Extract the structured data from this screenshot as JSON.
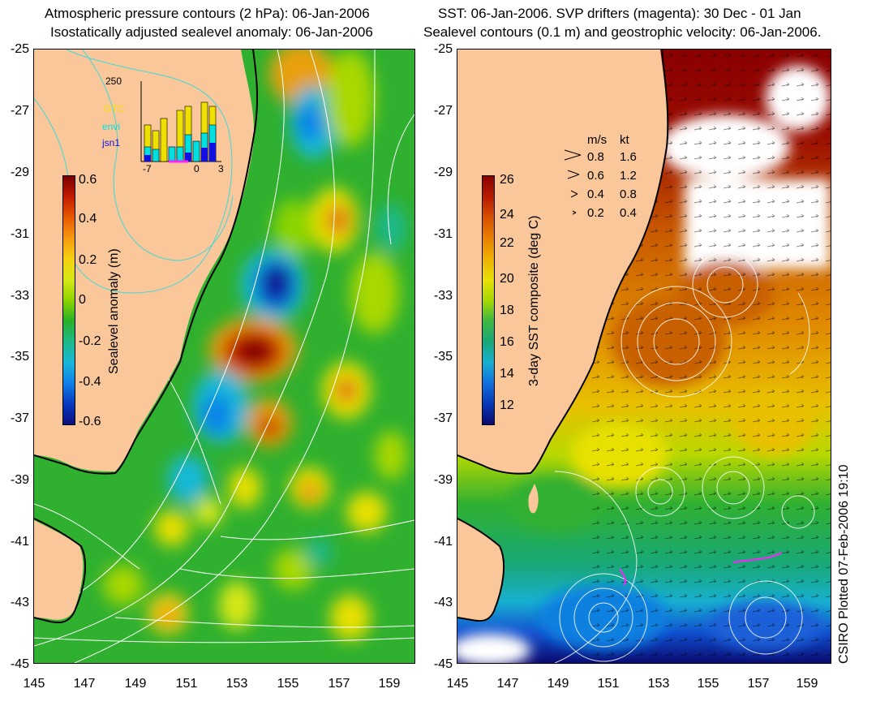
{
  "left_panel": {
    "title_line1": "Atmospheric pressure contours (2 hPa): 06-Jan-2006",
    "title_line2": "Isostatically adjusted sealevel anomaly: 06-Jan-2006",
    "y_ticks": [
      "-25",
      "-27",
      "-29",
      "-31",
      "-33",
      "-35",
      "-37",
      "-39",
      "-41",
      "-43",
      "-45"
    ],
    "x_ticks": [
      "145",
      "147",
      "149",
      "151",
      "153",
      "155",
      "157",
      "159"
    ],
    "colorbar": {
      "label": "Sealevel anomaly (m)",
      "ticks": [
        "0.6",
        "0.4",
        "0.2",
        "0",
        "-0.2",
        "-0.4",
        "-0.6"
      ],
      "colors": [
        "#7a0000",
        "#c41a00",
        "#e65a00",
        "#f59a10",
        "#f5d010",
        "#d8e818",
        "#8cd400",
        "#28b028",
        "#1eb888",
        "#18b8d8",
        "#1080e8",
        "#0838c0",
        "#0a1080"
      ]
    },
    "inset": {
      "top_value": "250",
      "legend": [
        "GTC",
        "envi",
        "jsn1"
      ],
      "legend_colors": [
        "#f0e000",
        "#00e0e0",
        "#1010e0"
      ],
      "x_ticks": [
        "-7",
        "0",
        "3"
      ]
    }
  },
  "right_panel": {
    "title_line1": "SST: 06-Jan-2006. SVP drifters (magenta): 30 Dec - 01 Jan",
    "title_line2": "Sealevel contours (0.1 m) and geostrophic velocity: 06-Jan-2006.",
    "y_ticks": [
      "-25",
      "-27",
      "-29",
      "-31",
      "-33",
      "-35",
      "-37",
      "-39",
      "-41",
      "-43",
      "-45"
    ],
    "x_ticks": [
      "145",
      "147",
      "149",
      "151",
      "153",
      "155",
      "157",
      "159"
    ],
    "colorbar": {
      "label": "3-day SST composite (deg C)",
      "ticks": [
        "26",
        "24",
        "22",
        "20",
        "18",
        "16",
        "14",
        "12"
      ],
      "colors": [
        "#8a0000",
        "#b81a00",
        "#d85000",
        "#e88000",
        "#f0b000",
        "#e8e000",
        "#a8d800",
        "#40b840",
        "#18a878",
        "#18b0d0",
        "#1070e0",
        "#0838b8",
        "#0a0a70"
      ]
    },
    "speed_legend": {
      "headers": [
        "m/s",
        "kt"
      ],
      "rows": [
        [
          "0.8",
          "1.6"
        ],
        [
          "0.6",
          "1.2"
        ],
        [
          "0.4",
          "0.8"
        ],
        [
          "0.2",
          "0.4"
        ]
      ]
    }
  },
  "credit": "CSIRO Plotted 07-Feb-2006 19:10",
  "colors": {
    "land": "#f9c79a",
    "ocean_mid": "#30b030",
    "coast": "#000000",
    "contour": "#ffffff",
    "cyan_contour": "#40d8d8"
  }
}
